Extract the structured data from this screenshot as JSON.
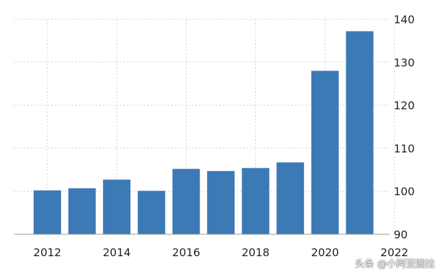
{
  "chart_data": {
    "type": "bar",
    "title": "",
    "xlabel": "",
    "ylabel": "",
    "categories": [
      "2012",
      "2013",
      "2014",
      "2015",
      "2016",
      "2017",
      "2018",
      "2019",
      "2020",
      "2021"
    ],
    "values": [
      100.2,
      100.7,
      102.7,
      100.1,
      105.2,
      104.7,
      105.4,
      106.7,
      128.0,
      137.2
    ],
    "x_ticks": [
      "2012",
      "2014",
      "2016",
      "2018",
      "2020",
      "2022"
    ],
    "y_ticks": [
      "90",
      "100",
      "110",
      "120",
      "130",
      "140"
    ],
    "ylim": [
      90,
      140
    ],
    "y_axis_side": "right",
    "grid": true,
    "bar_color": "#3c7ab5",
    "grid_color": "#c8d0d8"
  },
  "watermark": "头条 @小阿亚图拉"
}
